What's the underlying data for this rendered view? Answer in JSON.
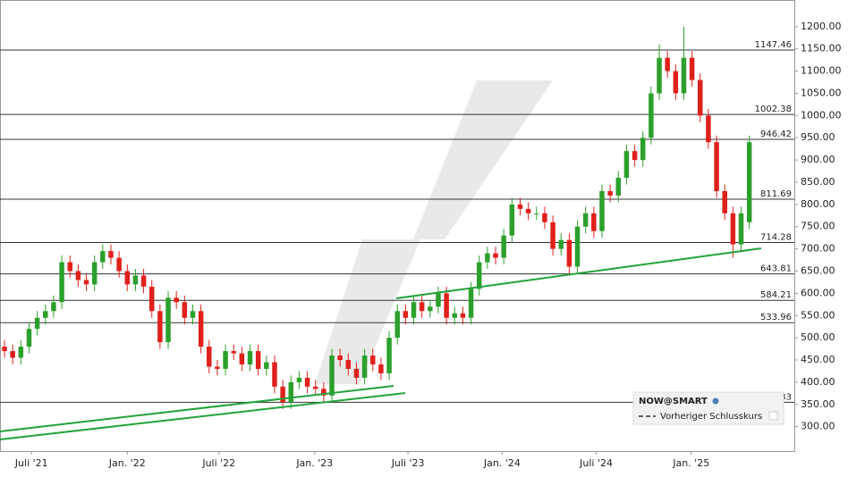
{
  "chart_data": {
    "type": "candlestick",
    "xlim": [
      -0.55,
      96.5
    ],
    "ylim": [
      245,
      1260
    ],
    "xticks": [
      {
        "value": 3.3,
        "label": "Juli '21"
      },
      {
        "value": 15.0,
        "label": "Jan. '22"
      },
      {
        "value": 26.2,
        "label": "Juli '22"
      },
      {
        "value": 37.9,
        "label": "Jan. '23"
      },
      {
        "value": 49.3,
        "label": "Juli '23"
      },
      {
        "value": 60.8,
        "label": "Jan. '24"
      },
      {
        "value": 72.3,
        "label": "Juli '24"
      },
      {
        "value": 83.9,
        "label": "Jan. '25"
      }
    ],
    "yticks": [
      {
        "value": 300,
        "label": "300.00"
      },
      {
        "value": 350,
        "label": "350.00"
      },
      {
        "value": 400,
        "label": "400.00"
      },
      {
        "value": 450,
        "label": "450.00"
      },
      {
        "value": 500,
        "label": "500.00"
      },
      {
        "value": 550,
        "label": "550.00"
      },
      {
        "value": 600,
        "label": "600.00"
      },
      {
        "value": 650,
        "label": "650.00"
      },
      {
        "value": 700,
        "label": "700.00"
      },
      {
        "value": 750,
        "label": "750.00"
      },
      {
        "value": 800,
        "label": "800.00"
      },
      {
        "value": 850,
        "label": "850.00"
      },
      {
        "value": 900,
        "label": "900.00"
      },
      {
        "value": 950,
        "label": "950.00"
      },
      {
        "value": 1000,
        "label": "1000.00"
      },
      {
        "value": 1050,
        "label": "1050.00"
      },
      {
        "value": 1100,
        "label": "1100.00"
      },
      {
        "value": 1150,
        "label": "1150.00"
      },
      {
        "value": 1200,
        "label": "1200.00"
      }
    ],
    "grid": true,
    "levels": [
      1147.46,
      1002.38,
      946.42,
      811.69,
      714.28,
      643.81,
      584.21,
      533.96,
      354.83
    ],
    "series": [
      {
        "name": "NOW@SMART",
        "up_color": "#2ca02c",
        "down_color": "#e0201b",
        "open": [
          480,
          470,
          455,
          480,
          520,
          545,
          560,
          580,
          670,
          650,
          630,
          620,
          670,
          695,
          680,
          650,
          620,
          640,
          615,
          560,
          490,
          590,
          580,
          545,
          560,
          480,
          435,
          430,
          470,
          465,
          440,
          470,
          430,
          445,
          390,
          355,
          400,
          410,
          390,
          385,
          370,
          460,
          450,
          430,
          410,
          460,
          440,
          420,
          500,
          560,
          545,
          580,
          560,
          570,
          600,
          545,
          555,
          545,
          610,
          670,
          690,
          680,
          730,
          800,
          790,
          780,
          780,
          760,
          700,
          720,
          660,
          750,
          780,
          740,
          830,
          820,
          860,
          920,
          900,
          950,
          1050,
          1130,
          1100,
          1050,
          1130,
          1080,
          1000,
          940,
          830,
          780,
          710,
          760
        ],
        "high": [
          495,
          485,
          495,
          535,
          560,
          575,
          595,
          685,
          685,
          665,
          645,
          685,
          710,
          710,
          695,
          665,
          655,
          655,
          630,
          575,
          605,
          605,
          595,
          575,
          575,
          495,
          450,
          485,
          485,
          480,
          485,
          485,
          460,
          460,
          405,
          415,
          425,
          425,
          405,
          400,
          475,
          475,
          465,
          445,
          475,
          475,
          455,
          515,
          575,
          575,
          595,
          595,
          585,
          615,
          615,
          570,
          570,
          625,
          685,
          705,
          705,
          745,
          815,
          815,
          805,
          795,
          795,
          775,
          735,
          735,
          765,
          795,
          795,
          845,
          845,
          875,
          935,
          935,
          965,
          1065,
          1160,
          1145,
          1115,
          1200,
          1145,
          1095,
          1015,
          955,
          845,
          795,
          795,
          955
        ],
        "low": [
          455,
          440,
          440,
          465,
          505,
          530,
          545,
          565,
          635,
          615,
          605,
          605,
          655,
          665,
          635,
          605,
          605,
          600,
          545,
          475,
          475,
          565,
          530,
          530,
          465,
          420,
          415,
          415,
          450,
          425,
          425,
          415,
          415,
          375,
          340,
          340,
          385,
          375,
          370,
          355,
          355,
          435,
          415,
          395,
          395,
          425,
          405,
          405,
          485,
          530,
          530,
          545,
          545,
          555,
          530,
          530,
          530,
          530,
          595,
          655,
          665,
          665,
          715,
          775,
          765,
          765,
          745,
          685,
          685,
          640,
          645,
          735,
          725,
          725,
          805,
          805,
          845,
          885,
          885,
          935,
          1035,
          1085,
          1035,
          1035,
          1065,
          985,
          925,
          815,
          765,
          680,
          695,
          745
        ],
        "close": [
          470,
          455,
          480,
          520,
          545,
          560,
          580,
          670,
          650,
          630,
          620,
          670,
          695,
          680,
          650,
          620,
          640,
          615,
          560,
          490,
          590,
          580,
          545,
          560,
          480,
          435,
          430,
          470,
          465,
          440,
          470,
          430,
          445,
          390,
          355,
          400,
          410,
          390,
          385,
          370,
          460,
          450,
          430,
          410,
          460,
          440,
          420,
          500,
          560,
          545,
          580,
          560,
          570,
          600,
          545,
          555,
          545,
          610,
          670,
          690,
          680,
          730,
          800,
          790,
          780,
          780,
          760,
          700,
          720,
          660,
          750,
          780,
          740,
          830,
          820,
          860,
          920,
          900,
          950,
          1050,
          1130,
          1100,
          1050,
          1130,
          1080,
          1000,
          940,
          830,
          780,
          710,
          780,
          940
        ]
      }
    ],
    "legend": {
      "previous_close": "Vorheriger Schlusskurs"
    }
  }
}
